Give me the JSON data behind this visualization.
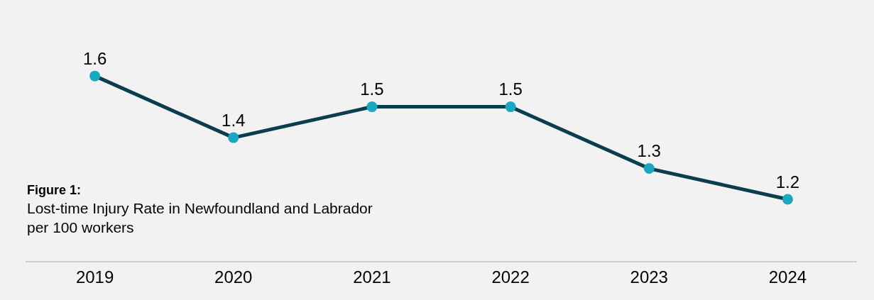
{
  "chart_data": {
    "type": "line",
    "title": "Figure 1:",
    "subtitle": "Lost-time Injury Rate in Newfoundland and Labrador\nper 100 workers",
    "categories": [
      "2019",
      "2020",
      "2021",
      "2022",
      "2023",
      "2024"
    ],
    "series": [
      {
        "color": "#0b3e4c",
        "colors": [
          "#1aa7c0",
          "#1aa7c0",
          "#1aa7c0",
          "#1aa7c0",
          "#1aa7c0",
          "#1aa7c0"
        ],
        "values": [
          1.6,
          1.4,
          1.5,
          1.5,
          1.3,
          1.2
        ]
      }
    ],
    "data_labels": true,
    "marker": "circle",
    "line_style": "solid",
    "grid": false,
    "legend": false,
    "tick_labels": "x"
  }
}
